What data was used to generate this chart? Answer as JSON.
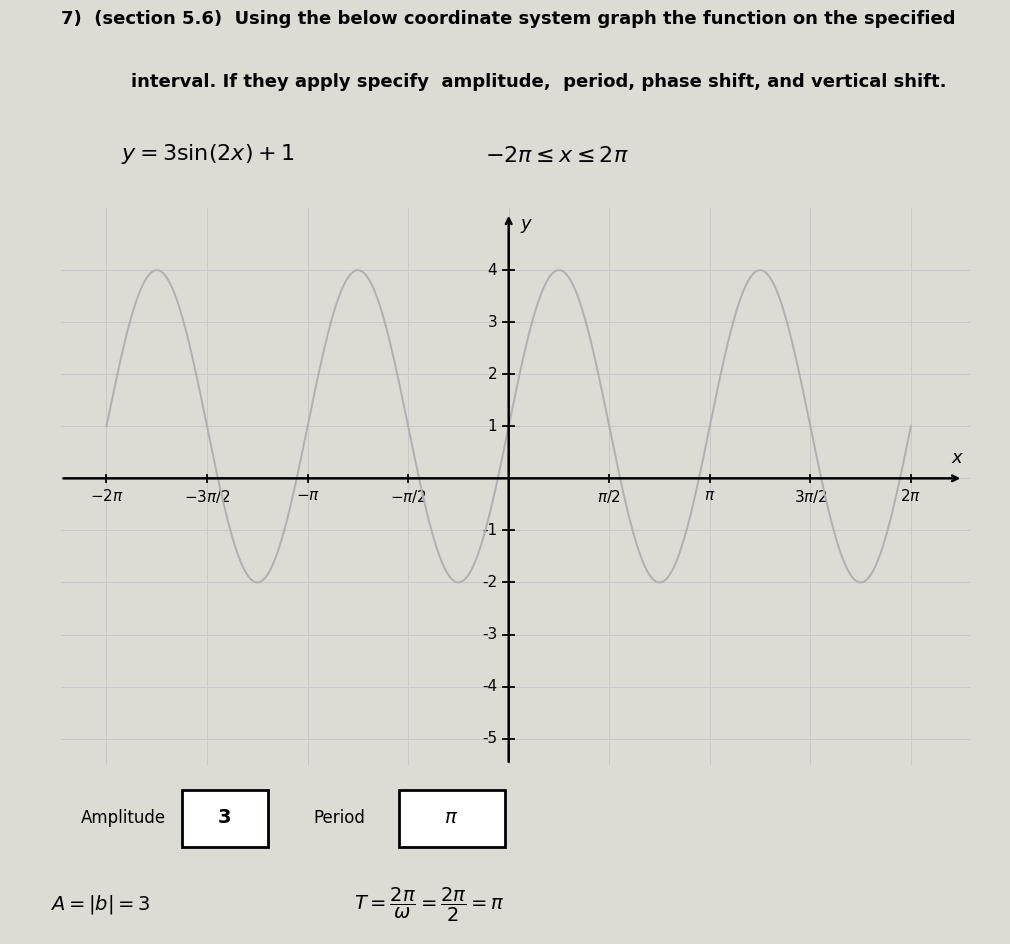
{
  "title_line1": "7)  (section 5.6)  Using the below coordinate system graph the function on the specified",
  "title_line2": "interval. If they apply specify  amplitude,  period, phase shift, and vertical shift.",
  "amplitude": 3,
  "vertical_shift": 1,
  "phase_shift": 0,
  "xlim": [
    -7.0,
    7.2
  ],
  "ylim": [
    -5.5,
    5.2
  ],
  "xticks_values": [
    -6.283185,
    -4.712389,
    -3.141593,
    -1.570796,
    1.570796,
    3.141593,
    4.712389,
    6.283185
  ],
  "xticks_labels": [
    "-2\\pi",
    "-3\\pi/2",
    "-\\pi",
    "-\\pi/2",
    "\\pi/2",
    "\\pi",
    "3\\pi/2",
    "2\\pi"
  ],
  "yticks_values": [
    -5,
    -4,
    -3,
    -2,
    -1,
    1,
    2,
    3,
    4
  ],
  "yticks_labels": [
    "-5",
    "-4",
    "-3",
    "-2",
    "-1",
    "1",
    "2",
    "3",
    "4"
  ],
  "curve_color": "#b0b0b0",
  "curve_linewidth": 1.4,
  "grid_color": "#c8c8c8",
  "grid_linewidth": 0.7,
  "axis_color": "#000000",
  "background_color": "#dcdcd4",
  "paper_color": "#e8e8e2",
  "amplitude_label": "3",
  "period_label": "\\pi",
  "note_fontsize": 13,
  "equation_fontsize": 16,
  "tick_fontsize": 11,
  "label_fontsize": 13
}
